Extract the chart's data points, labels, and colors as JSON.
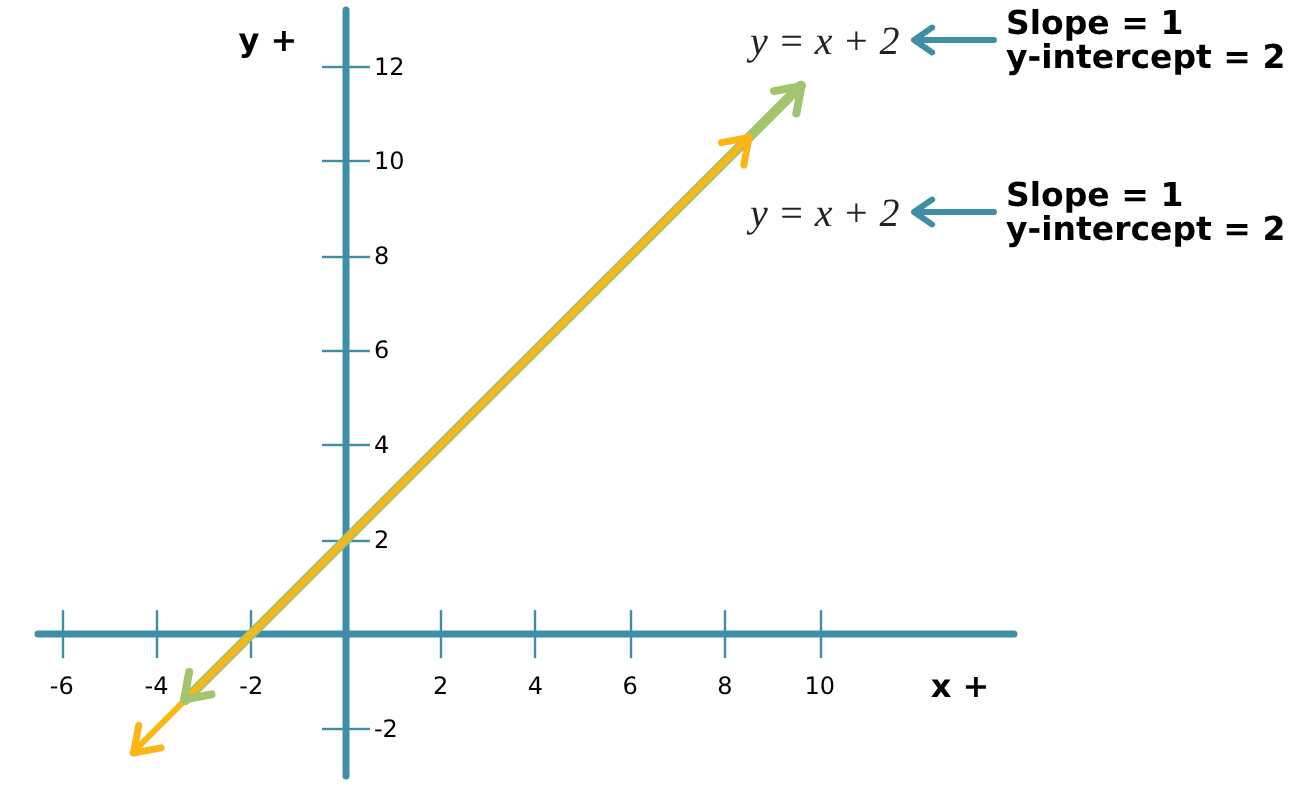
{
  "chart_data": {
    "type": "line",
    "xlabel": "x +",
    "ylabel": "y +",
    "series": [
      {
        "color": "#a2c46e",
        "x": [
          -3.4,
          9.6
        ],
        "values": [
          -1.4,
          11.6
        ]
      },
      {
        "color": "#fbb515",
        "x": [
          -4.5,
          8.5
        ],
        "values": [
          -2.5,
          10.5
        ]
      }
    ],
    "xlim": [
      -6.5,
      14.1
    ],
    "ylim": [
      -3,
      13.2
    ],
    "xticks": [
      -6,
      -4,
      -2,
      2,
      4,
      6,
      8,
      10
    ],
    "yticks": [
      -2,
      2,
      4,
      6,
      8,
      10,
      12
    ],
    "marker": "none",
    "line_style": "solid",
    "annotations": [
      "y = x + 2",
      "Slope = 1\ny-intercept = 2",
      "y = x + 2",
      "Slope = 1\ny-intercept = 2"
    ]
  }
}
